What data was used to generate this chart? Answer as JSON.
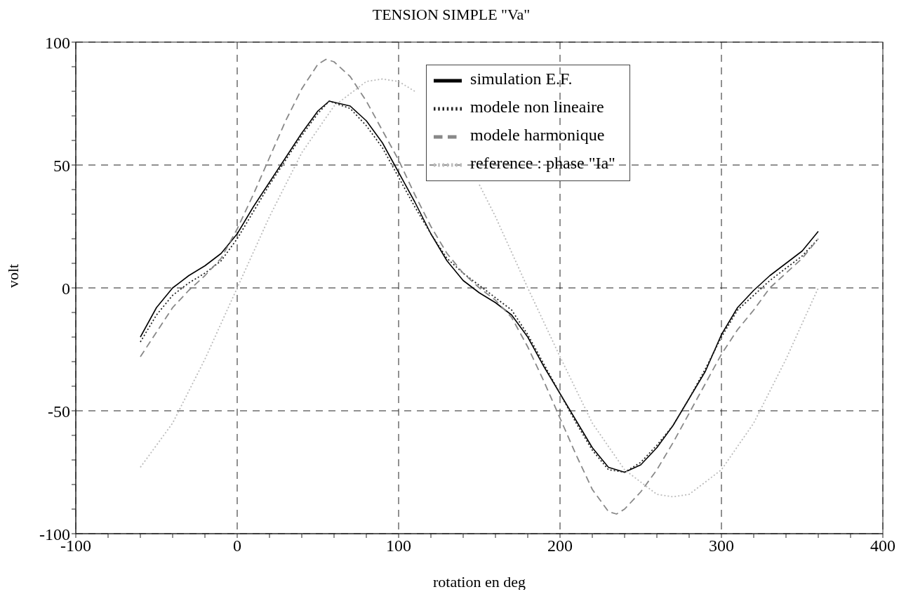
{
  "chart_data": {
    "type": "line",
    "title": "TENSION SIMPLE \"Va\"",
    "xlabel": "rotation en deg",
    "ylabel": "volt",
    "xlim": [
      -100,
      400
    ],
    "ylim": [
      -100,
      100
    ],
    "xticks": [
      -100,
      {
        "value": -80,
        "label": null
      },
      {
        "value": -60,
        "label": null
      },
      {
        "value": -40,
        "label": null
      },
      {
        "value": -20,
        "label": null
      },
      0,
      {
        "value": 20,
        "label": null
      },
      {
        "value": 40,
        "label": null
      },
      {
        "value": 60,
        "label": null
      },
      {
        "value": 80,
        "label": null
      },
      100,
      {
        "value": 120,
        "label": null
      },
      {
        "value": 140,
        "label": null
      },
      {
        "value": 160,
        "label": null
      },
      {
        "value": 180,
        "label": null
      },
      200,
      {
        "value": 220,
        "label": null
      },
      {
        "value": 240,
        "label": null
      },
      {
        "value": 260,
        "label": null
      },
      {
        "value": 280,
        "label": null
      },
      300,
      {
        "value": 320,
        "label": null
      },
      {
        "value": 340,
        "label": null
      },
      {
        "value": 360,
        "label": null
      },
      {
        "value": 380,
        "label": null
      },
      400
    ],
    "yticks": [
      -100,
      {
        "value": -90,
        "label": null
      },
      {
        "value": -80,
        "label": null
      },
      {
        "value": -70,
        "label": null
      },
      {
        "value": -60,
        "label": null
      },
      -50,
      {
        "value": -40,
        "label": null
      },
      {
        "value": -30,
        "label": null
      },
      {
        "value": -20,
        "label": null
      },
      {
        "value": -10,
        "label": null
      },
      0,
      {
        "value": 10,
        "label": null
      },
      {
        "value": 20,
        "label": null
      },
      {
        "value": 30,
        "label": null
      },
      {
        "value": 40,
        "label": null
      },
      50,
      {
        "value": 60,
        "label": null
      },
      {
        "value": 70,
        "label": null
      },
      {
        "value": 80,
        "label": null
      },
      {
        "value": 90,
        "label": null
      },
      100
    ],
    "grid": true,
    "legend": "top right",
    "marker": "none",
    "series": [
      {
        "name": "simulation E.F.",
        "color": "#000000",
        "line_style": "solid",
        "x": [
          -60,
          -50,
          -40,
          -30,
          -20,
          -10,
          0,
          10,
          20,
          30,
          40,
          50,
          57,
          70,
          80,
          90,
          100,
          110,
          120,
          130,
          140,
          150,
          160,
          170,
          180,
          190,
          200,
          210,
          220,
          230,
          240,
          250,
          260,
          270,
          280,
          290,
          300,
          310,
          320,
          330,
          340,
          350,
          360
        ],
        "values": [
          -20,
          -8,
          0,
          5,
          9,
          14,
          22,
          33,
          43,
          53,
          63,
          72,
          76,
          74,
          68,
          59,
          47,
          35,
          22,
          11,
          3,
          -2,
          -6,
          -11,
          -20,
          -32,
          -43,
          -54,
          -65,
          -73,
          -75,
          -72,
          -65,
          -56,
          -45,
          -34,
          -19,
          -8,
          -1,
          5,
          10,
          15,
          23
        ]
      },
      {
        "name": "modele non lineaire",
        "color": "#222222",
        "line_style": "dotted",
        "x": [
          -60,
          -50,
          -40,
          -30,
          -20,
          -10,
          0,
          10,
          20,
          30,
          40,
          50,
          57,
          70,
          80,
          90,
          100,
          110,
          120,
          130,
          140,
          150,
          160,
          170,
          180,
          190,
          200,
          210,
          220,
          230,
          240,
          250,
          260,
          270,
          280,
          290,
          300,
          310,
          320,
          330,
          340,
          350,
          360
        ],
        "values": [
          -22,
          -11,
          -3,
          2,
          6,
          11,
          20,
          31,
          42,
          52,
          62,
          71,
          76,
          73,
          66,
          57,
          45,
          33,
          22,
          12,
          6,
          1,
          -4,
          -9,
          -19,
          -31,
          -43,
          -55,
          -66,
          -74,
          -75,
          -71,
          -64,
          -56,
          -45,
          -33,
          -20,
          -9,
          -3,
          3,
          8,
          13,
          20
        ]
      },
      {
        "name": "modele harmonique",
        "color": "#888888",
        "line_style": "dashed",
        "x": [
          -60,
          -50,
          -40,
          -30,
          -20,
          -10,
          0,
          10,
          20,
          30,
          40,
          50,
          55,
          60,
          70,
          80,
          90,
          100,
          110,
          120,
          130,
          140,
          150,
          160,
          170,
          180,
          190,
          200,
          210,
          220,
          230,
          235,
          240,
          250,
          260,
          270,
          280,
          290,
          300,
          310,
          320,
          330,
          340,
          350,
          360
        ],
        "values": [
          -28,
          -18,
          -8,
          -1,
          5,
          12,
          24,
          38,
          53,
          68,
          81,
          91,
          93,
          92,
          86,
          76,
          64,
          52,
          38,
          25,
          14,
          6,
          0,
          -5,
          -12,
          -24,
          -38,
          -53,
          -68,
          -82,
          -91,
          -92,
          -90,
          -83,
          -74,
          -63,
          -51,
          -39,
          -27,
          -17,
          -9,
          0,
          6,
          12,
          20
        ]
      },
      {
        "name": "reference : phase \"Ia\"",
        "color": "#bbbbbb",
        "line_style": "dotted",
        "x": [
          -60,
          -40,
          -20,
          0,
          20,
          40,
          60,
          80,
          90,
          100,
          110,
          120,
          140,
          150,
          160,
          180,
          200,
          220,
          240,
          260,
          270,
          280,
          300,
          320,
          340,
          360
        ],
        "values": [
          -73,
          -55,
          -29,
          0,
          29,
          55,
          74,
          84,
          85,
          84,
          80,
          null,
          null,
          42,
          29,
          0,
          -28,
          -55,
          -74,
          -84,
          -85,
          -84,
          -74,
          -55,
          -29,
          0
        ]
      }
    ]
  }
}
